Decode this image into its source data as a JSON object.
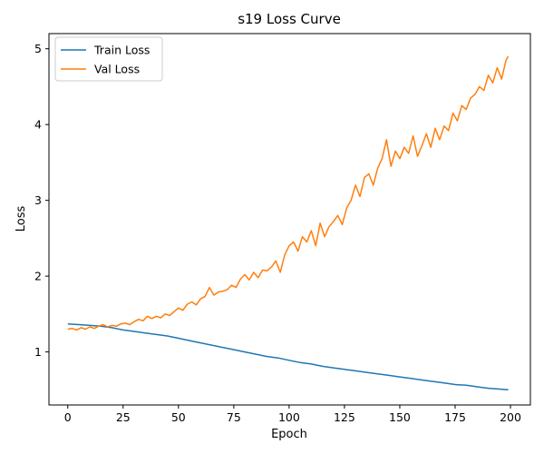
{
  "chart_data": {
    "type": "line",
    "title": "s19 Loss Curve",
    "xlabel": "Epoch",
    "ylabel": "Loss",
    "xlim": [
      -8.5,
      209
    ],
    "ylim": [
      0.3,
      5.2
    ],
    "xticks": [
      0,
      25,
      50,
      75,
      100,
      125,
      150,
      175,
      200
    ],
    "yticks": [
      1,
      2,
      3,
      4,
      5
    ],
    "grid": false,
    "legend": {
      "placement": "top-left"
    },
    "series": [
      {
        "name": "Train Loss",
        "color": "#1f77b4",
        "x": [
          0,
          5,
          10,
          15,
          20,
          25,
          30,
          35,
          40,
          45,
          50,
          55,
          60,
          65,
          70,
          75,
          80,
          85,
          90,
          95,
          100,
          105,
          110,
          115,
          120,
          125,
          130,
          135,
          140,
          145,
          150,
          155,
          160,
          165,
          170,
          175,
          180,
          185,
          190,
          195,
          199
        ],
        "values": [
          1.37,
          1.36,
          1.35,
          1.34,
          1.32,
          1.29,
          1.27,
          1.25,
          1.23,
          1.21,
          1.18,
          1.15,
          1.12,
          1.09,
          1.06,
          1.03,
          1.0,
          0.97,
          0.94,
          0.92,
          0.89,
          0.86,
          0.84,
          0.81,
          0.79,
          0.77,
          0.75,
          0.73,
          0.71,
          0.69,
          0.67,
          0.65,
          0.63,
          0.61,
          0.59,
          0.57,
          0.56,
          0.54,
          0.52,
          0.51,
          0.5
        ]
      },
      {
        "name": "Val Loss",
        "color": "#ff7f0e",
        "x": [
          0,
          2,
          4,
          6,
          8,
          10,
          12,
          14,
          16,
          18,
          20,
          22,
          24,
          26,
          28,
          30,
          32,
          34,
          36,
          38,
          40,
          42,
          44,
          46,
          48,
          50,
          52,
          54,
          56,
          58,
          60,
          62,
          64,
          66,
          68,
          70,
          72,
          74,
          76,
          78,
          80,
          82,
          84,
          86,
          88,
          90,
          92,
          94,
          96,
          98,
          100,
          102,
          104,
          106,
          108,
          110,
          112,
          114,
          116,
          118,
          120,
          122,
          124,
          126,
          128,
          130,
          132,
          134,
          136,
          138,
          140,
          142,
          144,
          146,
          148,
          150,
          152,
          154,
          156,
          158,
          160,
          162,
          164,
          166,
          168,
          170,
          172,
          174,
          176,
          178,
          180,
          182,
          184,
          186,
          188,
          190,
          192,
          194,
          196,
          198,
          199
        ],
        "values": [
          1.3,
          1.31,
          1.29,
          1.32,
          1.3,
          1.33,
          1.31,
          1.34,
          1.36,
          1.33,
          1.35,
          1.34,
          1.37,
          1.38,
          1.36,
          1.4,
          1.43,
          1.41,
          1.47,
          1.44,
          1.47,
          1.45,
          1.5,
          1.48,
          1.53,
          1.58,
          1.55,
          1.63,
          1.66,
          1.62,
          1.7,
          1.73,
          1.85,
          1.75,
          1.79,
          1.8,
          1.82,
          1.88,
          1.85,
          1.96,
          2.02,
          1.95,
          2.05,
          1.98,
          2.08,
          2.07,
          2.12,
          2.2,
          2.05,
          2.28,
          2.4,
          2.45,
          2.33,
          2.52,
          2.45,
          2.6,
          2.4,
          2.7,
          2.52,
          2.65,
          2.72,
          2.8,
          2.68,
          2.9,
          3.0,
          3.2,
          3.05,
          3.3,
          3.35,
          3.2,
          3.42,
          3.55,
          3.8,
          3.45,
          3.65,
          3.55,
          3.7,
          3.62,
          3.85,
          3.58,
          3.72,
          3.88,
          3.7,
          3.95,
          3.8,
          3.98,
          3.92,
          4.15,
          4.05,
          4.25,
          4.2,
          4.35,
          4.4,
          4.5,
          4.45,
          4.65,
          4.55,
          4.75,
          4.6,
          4.85,
          4.9
        ]
      }
    ]
  }
}
